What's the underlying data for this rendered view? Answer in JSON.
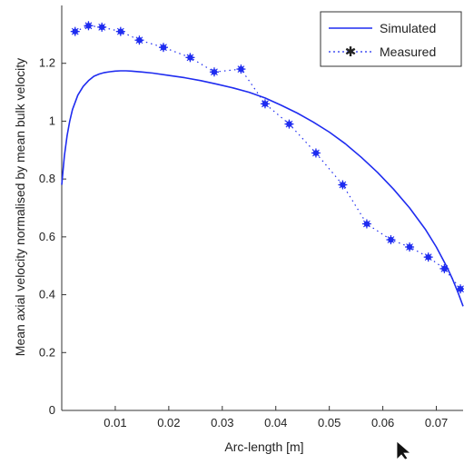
{
  "chart_data": {
    "type": "line",
    "title": "",
    "xlabel": "Arc-length [m]",
    "ylabel": "Mean axial velocity normalised by mean bulk velocity",
    "xlim": [
      0,
      0.075
    ],
    "ylim": [
      0,
      1.4
    ],
    "xticks": [
      0.01,
      0.02,
      0.03,
      0.04,
      0.05,
      0.06,
      0.07
    ],
    "xtick_labels": [
      "0.01",
      "0.02",
      "0.03",
      "0.04",
      "0.05",
      "0.06",
      "0.07"
    ],
    "yticks": [
      0,
      0.2,
      0.4,
      0.6,
      0.8,
      1,
      1.2
    ],
    "ytick_labels": [
      "0",
      "0.2",
      "0.4",
      "0.6",
      "0.8",
      "1",
      "1.2"
    ],
    "grid": false,
    "legend_position": "top-right",
    "series": [
      {
        "name": "Simulated",
        "style": "solid line",
        "color": "#1f2cf0",
        "x": [
          0,
          0.0005,
          0.001,
          0.0015,
          0.002,
          0.003,
          0.004,
          0.005,
          0.006,
          0.007,
          0.008,
          0.009,
          0.01,
          0.011,
          0.012,
          0.013,
          0.015,
          0.017,
          0.02,
          0.023,
          0.026,
          0.029,
          0.032,
          0.035,
          0.038,
          0.041,
          0.044,
          0.047,
          0.05,
          0.053,
          0.056,
          0.059,
          0.062,
          0.065,
          0.068,
          0.07,
          0.072,
          0.073,
          0.074,
          0.075
        ],
        "y": [
          0.78,
          0.88,
          0.95,
          1.0,
          1.04,
          1.09,
          1.12,
          1.14,
          1.155,
          1.163,
          1.168,
          1.171,
          1.173,
          1.174,
          1.174,
          1.173,
          1.17,
          1.166,
          1.158,
          1.15,
          1.14,
          1.128,
          1.115,
          1.1,
          1.08,
          1.055,
          1.028,
          0.997,
          0.962,
          0.922,
          0.875,
          0.823,
          0.765,
          0.7,
          0.625,
          0.565,
          0.495,
          0.455,
          0.41,
          0.36
        ]
      },
      {
        "name": "Measured",
        "style": "dotted line with star markers",
        "color": "#1f2cf0",
        "x": [
          0.0025,
          0.005,
          0.0075,
          0.011,
          0.0145,
          0.019,
          0.024,
          0.0285,
          0.0335,
          0.038,
          0.0425,
          0.0475,
          0.0525,
          0.057,
          0.0615,
          0.065,
          0.0685,
          0.0715,
          0.0745
        ],
        "y": [
          1.31,
          1.33,
          1.325,
          1.31,
          1.28,
          1.255,
          1.22,
          1.17,
          1.18,
          1.06,
          0.99,
          0.89,
          0.78,
          0.645,
          0.59,
          0.565,
          0.53,
          0.49,
          0.42
        ]
      }
    ]
  }
}
